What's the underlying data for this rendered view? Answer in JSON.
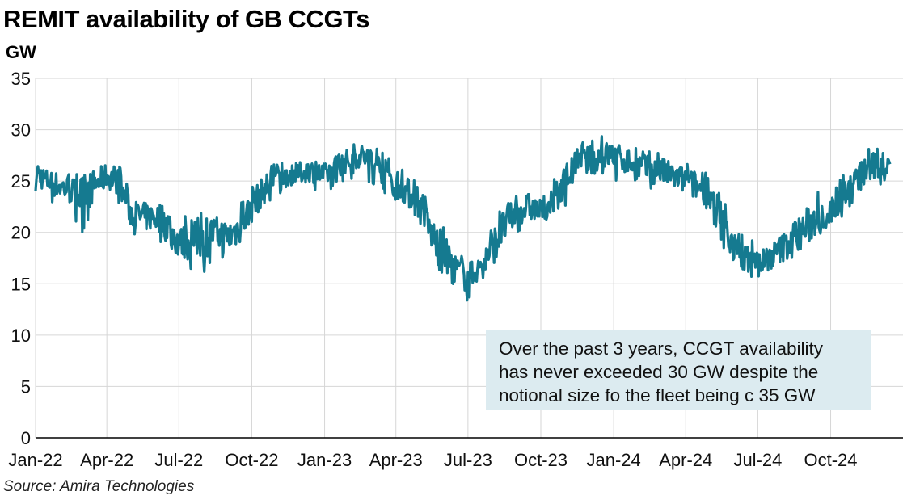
{
  "title": "REMIT availability of GB CCGTs",
  "unit": "GW",
  "source": "Source: Amira Technologies",
  "annotation": [
    "Over the past 3 years, CCGT availability",
    "has never exceeded 30 GW despite the",
    "notional size fo the fleet being c 35 GW"
  ],
  "colors": {
    "line": "#157a90",
    "grid": "#d6d6d6",
    "annotation_bg": "#dcebf0"
  },
  "chart_data": {
    "type": "line",
    "title": "REMIT availability of GB CCGTs",
    "ylabel": "GW",
    "xlabel": "",
    "ylim": [
      0,
      35
    ],
    "y_ticks": [
      0,
      5,
      10,
      15,
      20,
      25,
      30,
      35
    ],
    "x_ticks": [
      "Jan-22",
      "Apr-22",
      "Jul-22",
      "Oct-22",
      "Jan-23",
      "Apr-23",
      "Jul-23",
      "Oct-23",
      "Jan-24",
      "Apr-24",
      "Jul-24",
      "Oct-24"
    ],
    "grid": true,
    "x_range": [
      "2022-01-01",
      "2024-12-15"
    ],
    "series": [
      {
        "x": [
          "2022-01-01",
          "2022-01-15",
          "2022-02-01",
          "2022-02-15",
          "2022-03-01",
          "2022-03-15",
          "2022-04-01",
          "2022-04-15",
          "2022-05-01",
          "2022-05-15",
          "2022-06-01",
          "2022-06-15",
          "2022-07-01",
          "2022-07-15",
          "2022-08-01",
          "2022-08-15",
          "2022-09-01",
          "2022-09-15",
          "2022-10-01",
          "2022-10-15",
          "2022-11-01",
          "2022-11-15",
          "2022-12-01",
          "2022-12-15",
          "2023-01-01",
          "2023-01-15",
          "2023-02-01",
          "2023-02-15",
          "2023-03-01",
          "2023-03-15",
          "2023-04-01",
          "2023-04-15",
          "2023-05-01",
          "2023-05-15",
          "2023-06-01",
          "2023-06-15",
          "2023-07-01",
          "2023-07-15",
          "2023-08-01",
          "2023-08-15",
          "2023-09-01",
          "2023-09-15",
          "2023-10-01",
          "2023-10-15",
          "2023-11-01",
          "2023-11-15",
          "2023-12-01",
          "2023-12-15",
          "2024-01-01",
          "2024-01-15",
          "2024-02-01",
          "2024-02-15",
          "2024-03-01",
          "2024-03-15",
          "2024-04-01",
          "2024-04-15",
          "2024-05-01",
          "2024-05-15",
          "2024-06-01",
          "2024-06-15",
          "2024-07-01",
          "2024-07-15",
          "2024-08-01",
          "2024-08-15",
          "2024-09-01",
          "2024-09-15",
          "2024-10-01",
          "2024-10-15",
          "2024-11-01",
          "2024-11-15",
          "2024-12-01",
          "2024-12-15"
        ],
        "values": [
          26,
          25,
          24.5,
          24,
          23.5,
          24.5,
          25.5,
          25,
          22,
          21.5,
          21.5,
          21,
          19,
          19,
          19.5,
          20,
          19.5,
          20.5,
          22.5,
          24,
          25.5,
          25.5,
          25.8,
          26,
          25.5,
          26.5,
          27,
          27.5,
          27,
          26,
          25,
          24,
          22.5,
          20,
          18,
          16.5,
          15.5,
          16.5,
          18.5,
          20.5,
          22,
          22.5,
          22,
          23.5,
          25,
          26.5,
          27,
          27.5,
          27.5,
          27,
          26.5,
          26,
          26,
          25.5,
          25,
          24.5,
          23.5,
          21.5,
          18.5,
          17.5,
          17,
          17.5,
          18.5,
          19.5,
          20.5,
          21.5,
          22,
          23.5,
          25,
          26,
          26.5,
          26.8
        ],
        "range_low": [
          23.5,
          23,
          22.5,
          22,
          19.5,
          22,
          23.5,
          23,
          20,
          19.5,
          19.5,
          18.5,
          17.5,
          16.5,
          15.5,
          18,
          17,
          18,
          20,
          22,
          23.5,
          24,
          24,
          24,
          23.5,
          24.5,
          25,
          25.5,
          24.5,
          24,
          23,
          22,
          20,
          17.5,
          15.5,
          14.5,
          13.2,
          15,
          16,
          18,
          20,
          20.5,
          20.5,
          21.5,
          22.5,
          24.5,
          25,
          25.5,
          25,
          25,
          24.5,
          24,
          24,
          23.5,
          23,
          22.5,
          21.5,
          19,
          16.5,
          16,
          15.2,
          16,
          17,
          17.5,
          18,
          19.5,
          20.5,
          21.5,
          23,
          24,
          24.5,
          24.8
        ],
        "range_high": [
          27.3,
          26.5,
          26.2,
          25.8,
          25.5,
          26.5,
          27,
          26.8,
          24,
          23.5,
          23.5,
          24,
          22,
          21.5,
          22,
          22.5,
          22,
          23,
          24.5,
          26,
          27,
          26.8,
          27,
          27,
          27,
          27.5,
          28.5,
          28.8,
          28.5,
          27.8,
          27,
          26,
          24.5,
          22.5,
          20.5,
          18.5,
          17.5,
          18,
          21,
          23,
          24,
          24.2,
          24,
          25.5,
          27,
          28.5,
          29,
          29.5,
          28.8,
          28.8,
          28.5,
          28,
          27.8,
          27.2,
          26.8,
          26.5,
          25.5,
          24,
          21,
          19.5,
          19.3,
          19.5,
          21,
          22.5,
          23.5,
          24,
          24,
          25.5,
          27,
          28.3,
          28.5,
          28.5
        ]
      }
    ]
  }
}
